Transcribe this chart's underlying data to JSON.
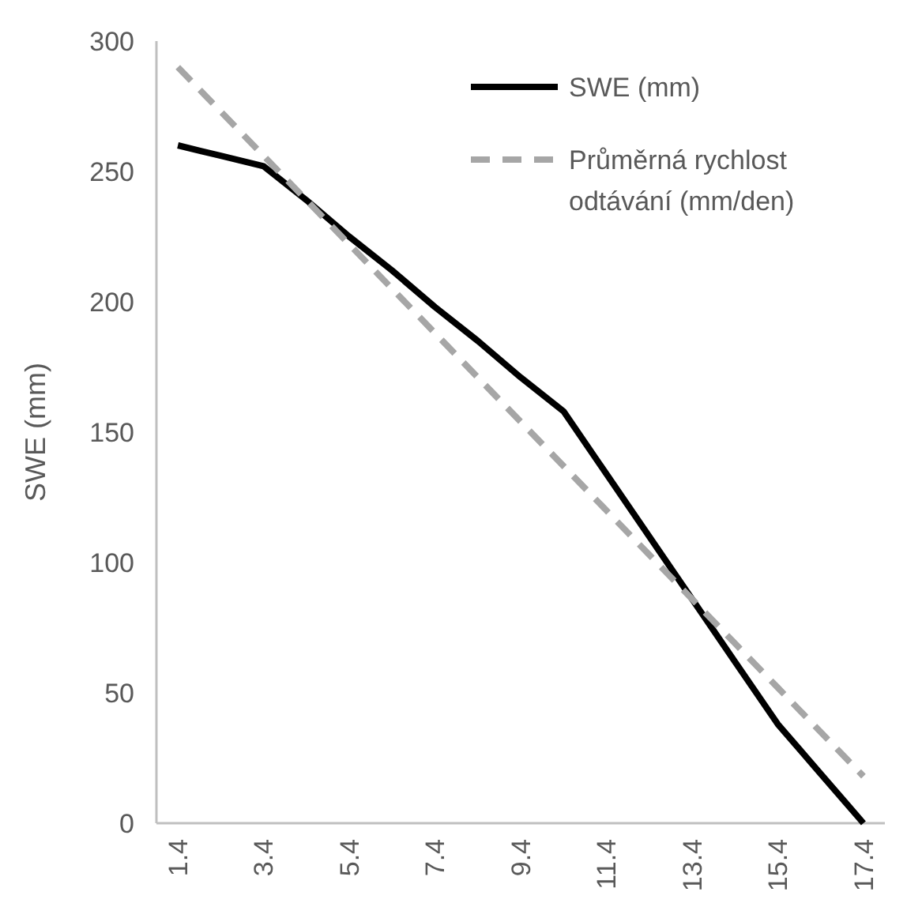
{
  "chart_data": {
    "type": "line",
    "ylabel": "SWE (mm)",
    "categories": [
      "1.4",
      null,
      "3.4",
      null,
      "5.4",
      null,
      "7.4",
      null,
      "9.4",
      null,
      "11.4",
      null,
      "13.4",
      null,
      "15.4",
      null,
      "17.4"
    ],
    "ylim": [
      0,
      300
    ],
    "yticks": [
      0,
      50,
      100,
      150,
      200,
      250,
      300
    ],
    "grid": false,
    "legend": "top right",
    "marker": "none",
    "series": [
      {
        "name": "SWE (mm)",
        "color": "#000000",
        "line_style": "solid",
        "values": [
          260,
          256,
          252,
          239,
          225,
          212,
          198,
          185,
          171,
          158,
          134,
          110,
          86,
          62,
          38,
          19,
          0
        ]
      },
      {
        "name": "Průměrná rychlost odtávání (mm/den)",
        "color": "#a6a6a6",
        "line_style": "dashed",
        "values": [
          290,
          273,
          256,
          239,
          222,
          205,
          188,
          171,
          154,
          137,
          120,
          103,
          86,
          69,
          52,
          35,
          18
        ]
      }
    ]
  }
}
